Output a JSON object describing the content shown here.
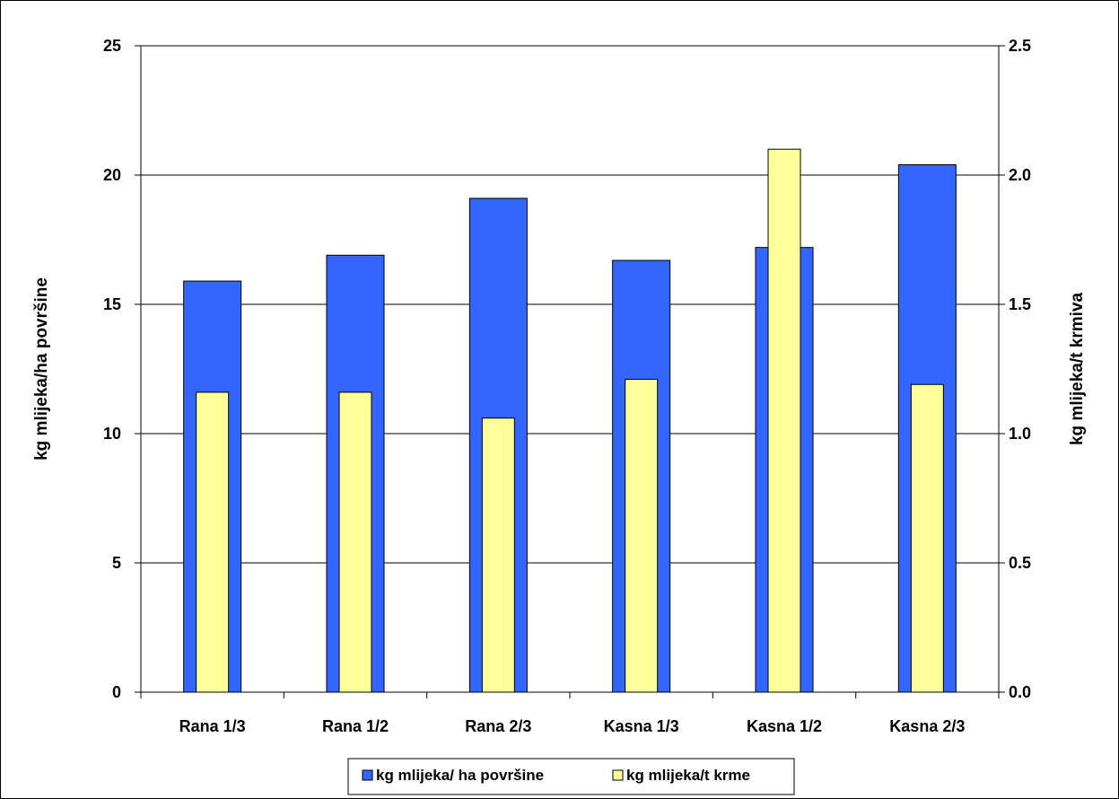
{
  "chart_data": {
    "type": "bar",
    "categories": [
      "Rana 1/3",
      "Rana 1/2",
      "Rana 2/3",
      "Kasna 1/3",
      "Kasna 1/2",
      "Kasna 2/3"
    ],
    "series": [
      {
        "name": "kg mlijeka/ ha površine",
        "axis": "left",
        "color": "#3366FF",
        "values": [
          15.9,
          16.9,
          19.1,
          16.7,
          17.2,
          20.4
        ]
      },
      {
        "name": "kg mlijeka/t krme",
        "axis": "right",
        "color": "#FFFF99",
        "values": [
          1.16,
          1.16,
          1.06,
          1.21,
          2.1,
          1.19
        ]
      }
    ],
    "y_left": {
      "label": "kg mlijeka/ha površine",
      "range": [
        0,
        25
      ],
      "ticks": [
        "0",
        "5",
        "10",
        "15",
        "20",
        "25"
      ]
    },
    "y_right": {
      "label": "kg mlijeka/t krmiva",
      "range": [
        0,
        2.5
      ],
      "ticks": [
        "0.0",
        "0.5",
        "1.0",
        "1.5",
        "2.0",
        "2.5"
      ]
    },
    "grid": true,
    "legend": "bottom"
  }
}
